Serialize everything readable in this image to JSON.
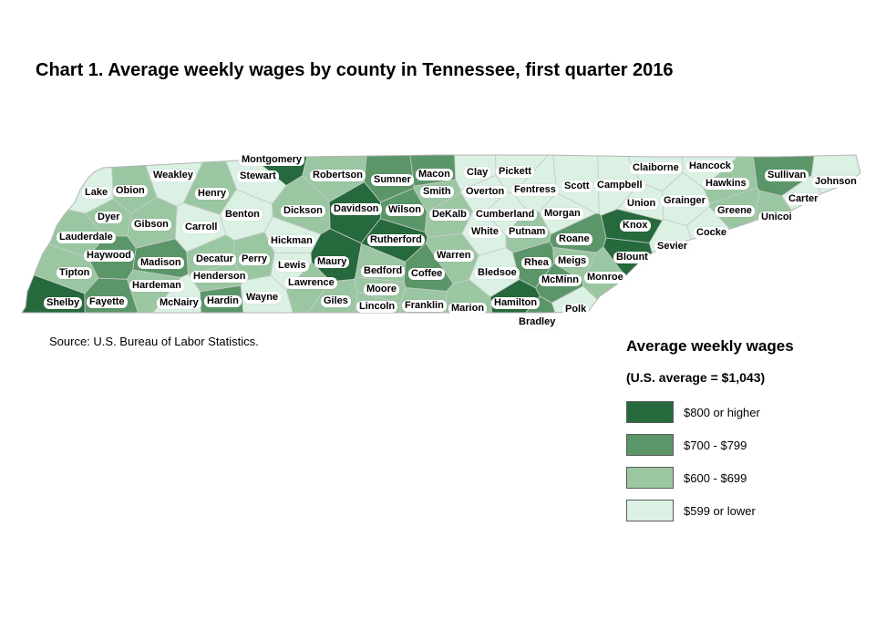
{
  "title": "Chart 1. Average weekly wages by county in Tennessee, first quarter 2016",
  "source": "Source: U.S. Bureau of Labor Statistics.",
  "legend": {
    "title": "Average weekly wages",
    "subtitle": "(U.S. average = $1,043)",
    "items": [
      {
        "label": "$800 or higher",
        "color": "#25693c"
      },
      {
        "label": "$700 - $799",
        "color": "#5b9669"
      },
      {
        "label": "$600 - $699",
        "color": "#9ac7a2"
      },
      {
        "label": "$599 or lower",
        "color": "#daf1e3"
      }
    ]
  },
  "counties": [
    {
      "name": "Montgomery",
      "category": 0
    },
    {
      "name": "Stewart",
      "category": 3
    },
    {
      "name": "Robertson",
      "category": 2
    },
    {
      "name": "Sumner",
      "category": 1
    },
    {
      "name": "Macon",
      "category": 1
    },
    {
      "name": "Clay",
      "category": 3
    },
    {
      "name": "Pickett",
      "category": 3
    },
    {
      "name": "Claiborne",
      "category": 3
    },
    {
      "name": "Hancock",
      "category": 3
    },
    {
      "name": "Sullivan",
      "category": 1
    },
    {
      "name": "Johnson",
      "category": 3
    },
    {
      "name": "Lake",
      "category": 3
    },
    {
      "name": "Obion",
      "category": 2
    },
    {
      "name": "Weakley",
      "category": 3
    },
    {
      "name": "Henry",
      "category": 2
    },
    {
      "name": "Benton",
      "category": 3
    },
    {
      "name": "Dickson",
      "category": 2
    },
    {
      "name": "Davidson",
      "category": 0
    },
    {
      "name": "Wilson",
      "category": 1
    },
    {
      "name": "Smith",
      "category": 2
    },
    {
      "name": "Overton",
      "category": 3
    },
    {
      "name": "Fentress",
      "category": 3
    },
    {
      "name": "Scott",
      "category": 3
    },
    {
      "name": "Campbell",
      "category": 3
    },
    {
      "name": "Union",
      "category": 3
    },
    {
      "name": "Grainger",
      "category": 3
    },
    {
      "name": "Hawkins",
      "category": 2
    },
    {
      "name": "Carter",
      "category": 3
    },
    {
      "name": "Unicoi",
      "category": 2
    },
    {
      "name": "Greene",
      "category": 2
    },
    {
      "name": "Dyer",
      "category": 2
    },
    {
      "name": "Gibson",
      "category": 2
    },
    {
      "name": "Carroll",
      "category": 3
    },
    {
      "name": "DeKalb",
      "category": 2
    },
    {
      "name": "Cumberland",
      "category": 3
    },
    {
      "name": "Morgan",
      "category": 3
    },
    {
      "name": "Knox",
      "category": 0
    },
    {
      "name": "Cocke",
      "category": 3
    },
    {
      "name": "Lauderdale",
      "category": 2
    },
    {
      "name": "Hickman",
      "category": 3
    },
    {
      "name": "Rutherford",
      "category": 0
    },
    {
      "name": "White",
      "category": 3
    },
    {
      "name": "Putnam",
      "category": 2
    },
    {
      "name": "Roane",
      "category": 1
    },
    {
      "name": "Sevier",
      "category": 3
    },
    {
      "name": "Haywood",
      "category": 1
    },
    {
      "name": "Madison",
      "category": 1
    },
    {
      "name": "Decatur",
      "category": 2
    },
    {
      "name": "Perry",
      "category": 2
    },
    {
      "name": "Lewis",
      "category": 3
    },
    {
      "name": "Maury",
      "category": 0
    },
    {
      "name": "Warren",
      "category": 2
    },
    {
      "name": "Rhea",
      "category": 1
    },
    {
      "name": "Meigs",
      "category": 2
    },
    {
      "name": "Blount",
      "category": 0
    },
    {
      "name": "Tipton",
      "category": 2
    },
    {
      "name": "Henderson",
      "category": 2
    },
    {
      "name": "Bedford",
      "category": 2
    },
    {
      "name": "Coffee",
      "category": 1
    },
    {
      "name": "Bledsoe",
      "category": 3
    },
    {
      "name": "McMinn",
      "category": 1
    },
    {
      "name": "Monroe",
      "category": 2
    },
    {
      "name": "Hardeman",
      "category": 2
    },
    {
      "name": "Lawrence",
      "category": 2
    },
    {
      "name": "Moore",
      "category": 2
    },
    {
      "name": "Wayne",
      "category": 3
    },
    {
      "name": "Shelby",
      "category": 0
    },
    {
      "name": "Fayette",
      "category": 1
    },
    {
      "name": "McNairy",
      "category": 3
    },
    {
      "name": "Hardin",
      "category": 1
    },
    {
      "name": "Giles",
      "category": 2
    },
    {
      "name": "Lincoln",
      "category": 2
    },
    {
      "name": "Franklin",
      "category": 2
    },
    {
      "name": "Marion",
      "category": 2
    },
    {
      "name": "Hamilton",
      "category": 0
    },
    {
      "name": "Polk",
      "category": 3
    },
    {
      "name": "Bradley",
      "category": 1
    }
  ]
}
